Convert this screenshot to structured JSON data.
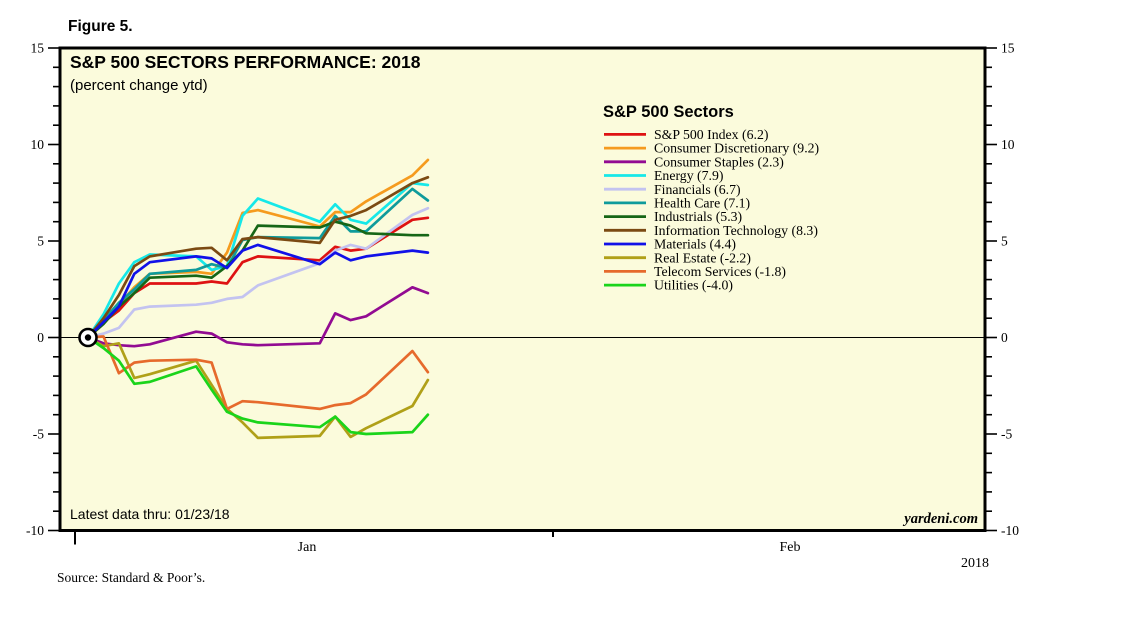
{
  "figure_label": "Figure 5.",
  "title": "S&P 500 SECTORS PERFORMANCE: 2018",
  "subtitle": "(percent change ytd)",
  "legend_title": "S&P 500 Sectors",
  "footnote": "Latest data thru: 01/23/18",
  "brand": "yardeni.com",
  "source": "Source: Standard & Poor’s.",
  "colors": {
    "plot_background": "#FBFBDC",
    "frame": "#000000",
    "text": "#000000"
  },
  "chart_data": {
    "type": "line",
    "title": "S&P 500 SECTORS PERFORMANCE: 2018",
    "subtitle": "(percent change ytd)",
    "ylabel": "percent change ytd",
    "ylim": [
      -10,
      15
    ],
    "y_major_step": 5,
    "y_minor_step": 1,
    "grid": "zero-line only",
    "legend_position": "upper right inside",
    "x_axis": {
      "months": [
        {
          "label": "Jan"
        },
        {
          "label": "Feb"
        }
      ],
      "year": "2018"
    },
    "dates": [
      "01/01",
      "01/02",
      "01/03",
      "01/04",
      "01/05",
      "01/08",
      "01/09",
      "01/10",
      "01/11",
      "01/12",
      "01/16",
      "01/17",
      "01/18",
      "01/19",
      "01/22",
      "01/23"
    ],
    "day_offsets": [
      0,
      1,
      2,
      3,
      4,
      7,
      8,
      9,
      10,
      11,
      15,
      16,
      17,
      18,
      21,
      22
    ],
    "origin_marker": {
      "date": "01/01",
      "value": 0
    },
    "series": [
      {
        "name": "S&P 500 Index",
        "ytd": 6.2,
        "label": "S&P 500 Index (6.2)",
        "color": "#DE1212",
        "values": [
          0,
          0.8,
          1.4,
          2.3,
          2.8,
          2.8,
          2.9,
          2.8,
          3.9,
          4.2,
          4.0,
          4.7,
          4.5,
          4.6,
          6.1,
          6.2
        ]
      },
      {
        "name": "Consumer Discretionary",
        "ytd": 9.2,
        "label": "Consumer Discretionary (9.2)",
        "color": "#F59B1E",
        "values": [
          0,
          0.9,
          1.7,
          2.6,
          3.3,
          3.4,
          3.3,
          4.4,
          6.45,
          6.6,
          5.75,
          6.5,
          6.5,
          7.05,
          8.4,
          9.2
        ]
      },
      {
        "name": "Consumer Staples",
        "ytd": 2.3,
        "label": "Consumer Staples (2.3)",
        "color": "#920B92",
        "values": [
          0,
          -0.3,
          -0.4,
          -0.45,
          -0.35,
          0.3,
          0.2,
          -0.25,
          -0.35,
          -0.4,
          -0.3,
          1.25,
          0.9,
          1.1,
          2.6,
          2.3
        ]
      },
      {
        "name": "Energy",
        "ytd": 7.9,
        "label": "Energy (7.9)",
        "color": "#16E8E8",
        "values": [
          0,
          1.2,
          2.8,
          3.9,
          4.3,
          4.2,
          3.5,
          3.7,
          6.3,
          7.2,
          6.0,
          6.9,
          6.1,
          5.9,
          8.0,
          7.9
        ]
      },
      {
        "name": "Financials",
        "ytd": 6.7,
        "label": "Financials (6.7)",
        "color": "#C3C3F0",
        "values": [
          0,
          0.2,
          0.5,
          1.45,
          1.6,
          1.7,
          1.8,
          2.0,
          2.1,
          2.7,
          3.85,
          4.5,
          4.8,
          4.6,
          6.35,
          6.7
        ]
      },
      {
        "name": "Health Care",
        "ytd": 7.1,
        "label": "Health Care (7.1)",
        "color": "#0F9B9B",
        "values": [
          0,
          0.9,
          1.8,
          2.5,
          3.3,
          3.5,
          3.8,
          3.6,
          5.05,
          5.2,
          5.15,
          6.3,
          5.5,
          5.5,
          7.7,
          7.1
        ]
      },
      {
        "name": "Industrials",
        "ytd": 5.3,
        "label": "Industrials (5.3)",
        "color": "#166616",
        "values": [
          0,
          0.7,
          1.6,
          2.3,
          3.1,
          3.2,
          3.1,
          3.7,
          4.5,
          5.8,
          5.7,
          6.0,
          5.8,
          5.4,
          5.3,
          5.3
        ]
      },
      {
        "name": "Information Technology",
        "ytd": 8.3,
        "label": "Information Technology (8.3)",
        "color": "#7B4A12",
        "values": [
          0,
          1.0,
          2.2,
          3.7,
          4.2,
          4.6,
          4.65,
          4.0,
          5.1,
          5.2,
          4.9,
          6.1,
          6.3,
          6.6,
          8.0,
          8.3
        ]
      },
      {
        "name": "Materials",
        "ytd": 4.4,
        "label": "Materials (4.4)",
        "color": "#1111E8",
        "values": [
          0,
          0.8,
          1.6,
          3.3,
          3.9,
          4.2,
          4.1,
          3.6,
          4.5,
          4.8,
          3.8,
          4.4,
          4.0,
          4.2,
          4.5,
          4.4
        ]
      },
      {
        "name": "Real Estate",
        "ytd": -2.2,
        "label": "Real Estate (-2.2)",
        "color": "#B0A018",
        "values": [
          0,
          -0.45,
          -0.3,
          -2.1,
          -1.9,
          -1.2,
          -2.45,
          -3.7,
          -4.4,
          -5.2,
          -5.1,
          -4.1,
          -5.15,
          -4.7,
          -3.55,
          -2.2
        ]
      },
      {
        "name": "Telecom Services",
        "ytd": -1.8,
        "label": "Telecom Services (-1.8)",
        "color": "#E66A2C",
        "values": [
          0,
          0.05,
          -1.85,
          -1.3,
          -1.2,
          -1.15,
          -1.3,
          -3.7,
          -3.3,
          -3.35,
          -3.7,
          -3.5,
          -3.4,
          -2.95,
          -0.7,
          -1.8
        ]
      },
      {
        "name": "Utilities",
        "ytd": -4.0,
        "label": "Utilities (-4.0)",
        "color": "#1AD41A",
        "values": [
          0,
          -0.55,
          -1.2,
          -2.4,
          -2.3,
          -1.5,
          -2.7,
          -3.85,
          -4.2,
          -4.4,
          -4.65,
          -4.1,
          -4.9,
          -5.0,
          -4.9,
          -4.0
        ]
      }
    ]
  }
}
